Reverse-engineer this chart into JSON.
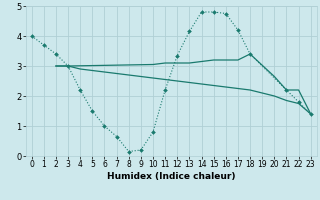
{
  "bg_color": "#cde8ec",
  "grid_color": "#b0cfd5",
  "line_color": "#1a7a6e",
  "xlabel": "Humidex (Indice chaleur)",
  "xlim": [
    -0.5,
    23.5
  ],
  "ylim": [
    0,
    5
  ],
  "xtick_labels": [
    "0",
    "1",
    "2",
    "3",
    "4",
    "5",
    "6",
    "7",
    "8",
    "9",
    "10",
    "11",
    "12",
    "13",
    "14",
    "15",
    "16",
    "17",
    "18",
    "19",
    "20",
    "21",
    "22",
    "23"
  ],
  "xtick_vals": [
    0,
    1,
    2,
    3,
    4,
    5,
    6,
    7,
    8,
    9,
    10,
    11,
    12,
    13,
    14,
    15,
    16,
    17,
    18,
    19,
    20,
    21,
    22,
    23
  ],
  "ytick_vals": [
    0,
    1,
    2,
    3,
    4,
    5
  ],
  "series_dotted": {
    "x": [
      0,
      1,
      2,
      3,
      4,
      5,
      6,
      7,
      8,
      9,
      10,
      11,
      12,
      13,
      14,
      15,
      16,
      17,
      18,
      21,
      22,
      23
    ],
    "y": [
      4.0,
      3.7,
      3.4,
      3.0,
      2.2,
      1.5,
      1.0,
      0.65,
      0.15,
      0.2,
      0.8,
      2.2,
      3.35,
      4.15,
      4.8,
      4.8,
      4.75,
      4.2,
      3.4,
      2.2,
      1.8,
      1.4
    ]
  },
  "series_solid1": {
    "x": [
      2,
      3,
      10,
      11,
      12,
      13,
      14,
      15,
      16,
      17,
      18,
      20,
      21,
      22,
      23
    ],
    "y": [
      3.0,
      3.0,
      3.05,
      3.1,
      3.1,
      3.1,
      3.15,
      3.2,
      3.2,
      3.2,
      3.4,
      2.65,
      2.2,
      2.2,
      1.4
    ]
  },
  "series_solid2": {
    "x": [
      2,
      3,
      4,
      5,
      6,
      7,
      8,
      9,
      10,
      11,
      12,
      13,
      14,
      15,
      16,
      17,
      18,
      19,
      20,
      21,
      22,
      23
    ],
    "y": [
      3.0,
      3.0,
      2.9,
      2.85,
      2.8,
      2.75,
      2.7,
      2.65,
      2.6,
      2.55,
      2.5,
      2.45,
      2.4,
      2.35,
      2.3,
      2.25,
      2.2,
      2.1,
      2.0,
      1.85,
      1.75,
      1.4
    ]
  }
}
